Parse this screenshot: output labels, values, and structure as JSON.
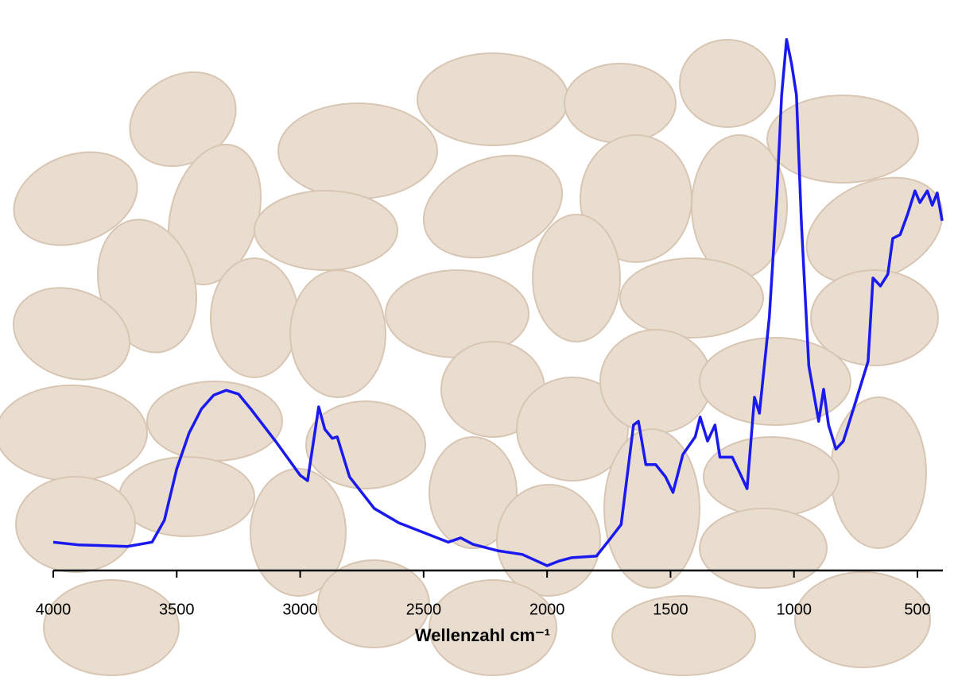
{
  "chart_data": {
    "type": "line",
    "x_label": "Wellenzahl cm⁻¹",
    "x": [
      4000,
      3900,
      3700,
      3600,
      3550,
      3500,
      3450,
      3400,
      3350,
      3300,
      3250,
      3200,
      3100,
      3000,
      2970,
      2925,
      2900,
      2870,
      2850,
      2800,
      2700,
      2600,
      2500,
      2400,
      2350,
      2300,
      2200,
      2100,
      2000,
      1950,
      1900,
      1800,
      1750,
      1700,
      1650,
      1630,
      1600,
      1560,
      1520,
      1490,
      1450,
      1400,
      1380,
      1350,
      1320,
      1300,
      1250,
      1220,
      1190,
      1160,
      1140,
      1100,
      1070,
      1050,
      1030,
      1010,
      990,
      970,
      940,
      900,
      880,
      860,
      830,
      800,
      750,
      700,
      680,
      650,
      620,
      600,
      570,
      540,
      510,
      490,
      460,
      440,
      420,
      400
    ],
    "series": [
      {
        "color": "#1a1aef",
        "values": [
          5.3,
          4.8,
          4.5,
          5.3,
          9.4,
          19,
          25.7,
          30.2,
          32.8,
          33.7,
          33,
          30.2,
          24.2,
          17.8,
          16.8,
          30.6,
          26.4,
          24.7,
          25,
          17.5,
          11.6,
          8.9,
          7.1,
          5.3,
          6.1,
          4.9,
          3.7,
          3,
          0.9,
          1.8,
          2.4,
          2.7,
          5.6,
          8.6,
          27.2,
          27.9,
          19.8,
          19.8,
          17.5,
          14.6,
          21.7,
          25,
          28.7,
          24.2,
          27.2,
          21.2,
          21.2,
          18.3,
          15.3,
          32.4,
          29.4,
          47.3,
          69.5,
          88.9,
          99.3,
          94.8,
          88.9,
          65,
          38.3,
          27.9,
          33.9,
          27.2,
          22.7,
          24.2,
          31.6,
          39.1,
          54.7,
          53.2,
          55.4,
          62.1,
          62.8,
          66.6,
          71,
          68.8,
          71,
          68.3,
          70.6,
          65.4
        ]
      }
    ],
    "xlim": [
      4000,
      397
    ],
    "xticks": [
      4000,
      3500,
      3000,
      2500,
      2000,
      1500,
      1000,
      500
    ],
    "ylim": [
      0,
      100
    ]
  }
}
